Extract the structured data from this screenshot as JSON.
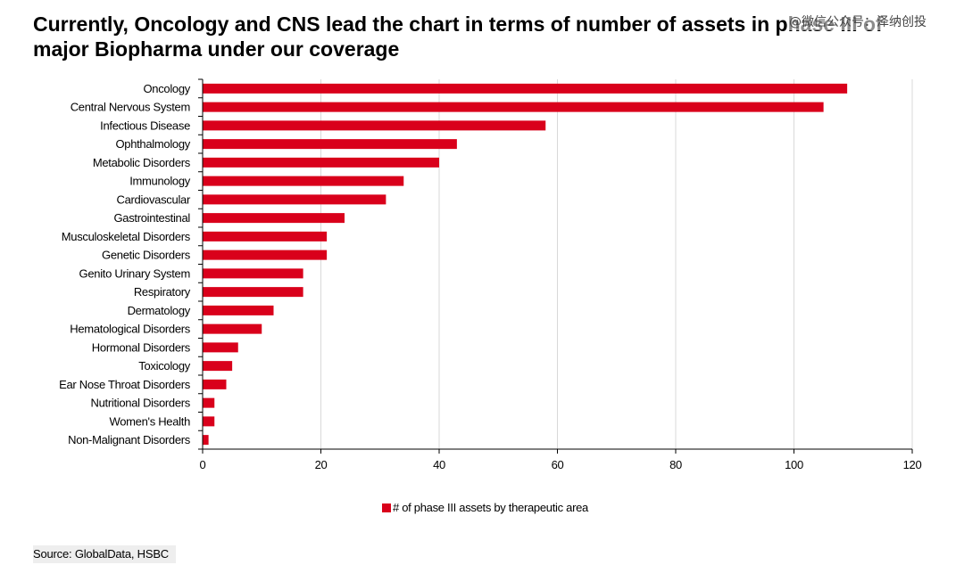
{
  "title_lines": [
    "Currently, Oncology and CNS lead the chart in terms of number of assets in phase III of",
    "major Biopharma under our coverage"
  ],
  "watermark": "@微信公众号：泽纳创投",
  "source": "Source: GlobalData, HSBC",
  "colors": {
    "bar": "#d9001b",
    "grid": "#d9d9d9",
    "axis": "#000000"
  },
  "chart_data": {
    "type": "bar",
    "orientation": "horizontal",
    "title": "Currently, Oncology and CNS lead the chart in terms of number of assets in phase III of major Biopharma under our coverage",
    "categories": [
      "Oncology",
      "Central Nervous System",
      "Infectious Disease",
      "Ophthalmology",
      "Metabolic Disorders",
      "Immunology",
      "Cardiovascular",
      "Gastrointestinal",
      "Musculoskeletal Disorders",
      "Genetic Disorders",
      "Genito Urinary System",
      "Respiratory",
      "Dermatology",
      "Hematological Disorders",
      "Hormonal Disorders",
      "Toxicology",
      "Ear Nose Throat Disorders",
      "Nutritional Disorders",
      "Women's Health",
      "Non-Malignant Disorders"
    ],
    "series": [
      {
        "name": "# of phase III assets by therapeutic area",
        "values": [
          109,
          105,
          58,
          43,
          40,
          34,
          31,
          24,
          21,
          21,
          17,
          17,
          12,
          10,
          6,
          5,
          4,
          2,
          2,
          1
        ]
      }
    ],
    "xlim": [
      0,
      120
    ],
    "xticks": [
      0,
      20,
      40,
      60,
      80,
      100,
      120
    ],
    "xlabel": "",
    "ylabel": "",
    "grid": "vertical",
    "legend": "bottom-center"
  }
}
